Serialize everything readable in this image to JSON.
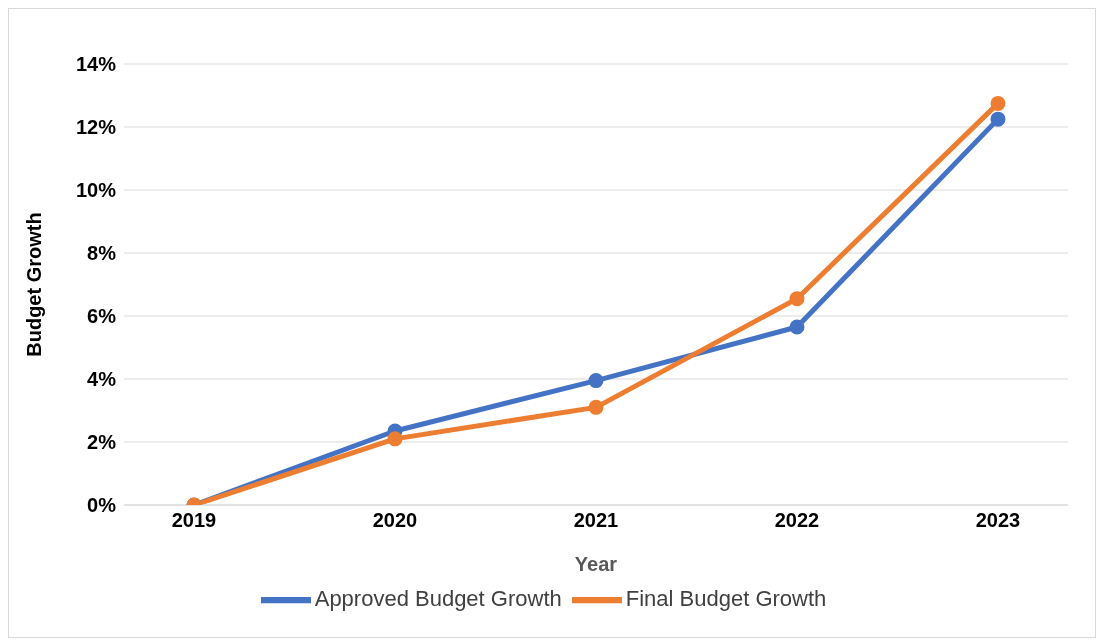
{
  "chart_data": {
    "type": "line",
    "xlabel": "Year",
    "ylabel": "Budget Growth",
    "categories": [
      "2019",
      "2020",
      "2021",
      "2022",
      "2023"
    ],
    "series": [
      {
        "name": "Approved Budget Growth",
        "color": "#4472c4",
        "values": [
          0,
          2.35,
          3.95,
          5.65,
          12.25
        ]
      },
      {
        "name": "Final Budget Growth",
        "color": "#ed7d31",
        "values": [
          0,
          2.1,
          3.1,
          6.55,
          12.75
        ]
      }
    ],
    "ylim": [
      0,
      14
    ],
    "yticks": [
      {
        "value": 0,
        "label": "0%"
      },
      {
        "value": 2,
        "label": "2%"
      },
      {
        "value": 4,
        "label": "4%"
      },
      {
        "value": 6,
        "label": "6%"
      },
      {
        "value": 8,
        "label": "8%"
      },
      {
        "value": 10,
        "label": "10%"
      },
      {
        "value": 12,
        "label": "12%"
      },
      {
        "value": 14,
        "label": "14%"
      }
    ],
    "grid": "y",
    "legend": "bottom",
    "marker": "circle",
    "line_style": "solid"
  }
}
